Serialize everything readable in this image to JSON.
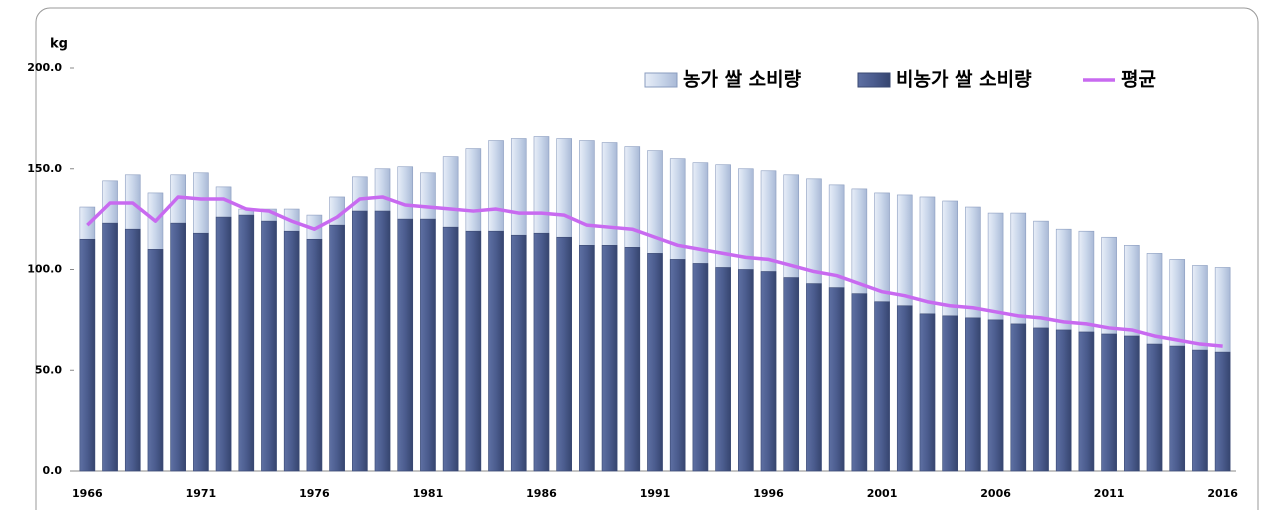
{
  "chart_data": {
    "type": "bar-line",
    "y_label": "kg",
    "categories": [
      "1966",
      null,
      null,
      null,
      null,
      "1971",
      null,
      null,
      null,
      null,
      "1976",
      null,
      null,
      null,
      null,
      "1981",
      null,
      null,
      null,
      null,
      "1986",
      null,
      null,
      null,
      null,
      "1991",
      null,
      null,
      null,
      null,
      "1996",
      null,
      null,
      null,
      null,
      "2001",
      null,
      null,
      null,
      null,
      "2006",
      null,
      null,
      null,
      null,
      "2011",
      null,
      null,
      null,
      null,
      "2016"
    ],
    "series": [
      {
        "name": "농가 쌀 소비량",
        "type": "bar",
        "color": "#c9d6ea",
        "values": [
          131,
          144,
          147,
          138,
          147,
          148,
          141,
          130,
          130,
          130,
          127,
          136,
          146,
          150,
          151,
          148,
          156,
          160,
          164,
          165,
          166,
          165,
          164,
          163,
          161,
          159,
          155,
          153,
          152,
          150,
          149,
          147,
          145,
          142,
          140,
          138,
          137,
          136,
          134,
          131,
          128,
          128,
          124,
          120,
          119,
          116,
          112,
          108,
          105,
          102,
          101
        ]
      },
      {
        "name": "비농가 쌀 소비량",
        "type": "bar",
        "color": "#4b5c8e",
        "values": [
          115,
          123,
          120,
          110,
          123,
          118,
          126,
          127,
          124,
          119,
          115,
          122,
          129,
          129,
          125,
          125,
          121,
          119,
          119,
          117,
          118,
          116,
          112,
          112,
          111,
          108,
          105,
          103,
          101,
          100,
          99,
          96,
          93,
          91,
          88,
          84,
          82,
          78,
          77,
          76,
          75,
          73,
          71,
          70,
          69,
          68,
          67,
          63,
          62,
          60,
          59
        ]
      },
      {
        "name": "평균",
        "type": "line",
        "color": "#c86af0",
        "values": [
          122,
          133,
          133,
          124,
          136,
          135,
          135,
          130,
          129,
          124,
          120,
          126,
          135,
          136,
          132,
          131,
          130,
          129,
          130,
          128,
          128,
          127,
          122,
          121,
          120,
          116,
          112,
          110,
          108,
          106,
          105,
          102,
          99,
          97,
          93,
          89,
          87,
          84,
          82,
          81,
          79,
          77,
          76,
          74,
          73,
          71,
          70,
          67,
          65,
          63,
          62
        ]
      }
    ],
    "ylim": [
      0,
      200
    ],
    "yticks": [
      {
        "value": 0,
        "label": "0.0"
      },
      {
        "value": 50,
        "label": "50.0"
      },
      {
        "value": 100,
        "label": "100.0"
      },
      {
        "value": 150,
        "label": "150.0"
      },
      {
        "value": 200,
        "label": "200.0"
      }
    ],
    "legend": "top-right"
  }
}
